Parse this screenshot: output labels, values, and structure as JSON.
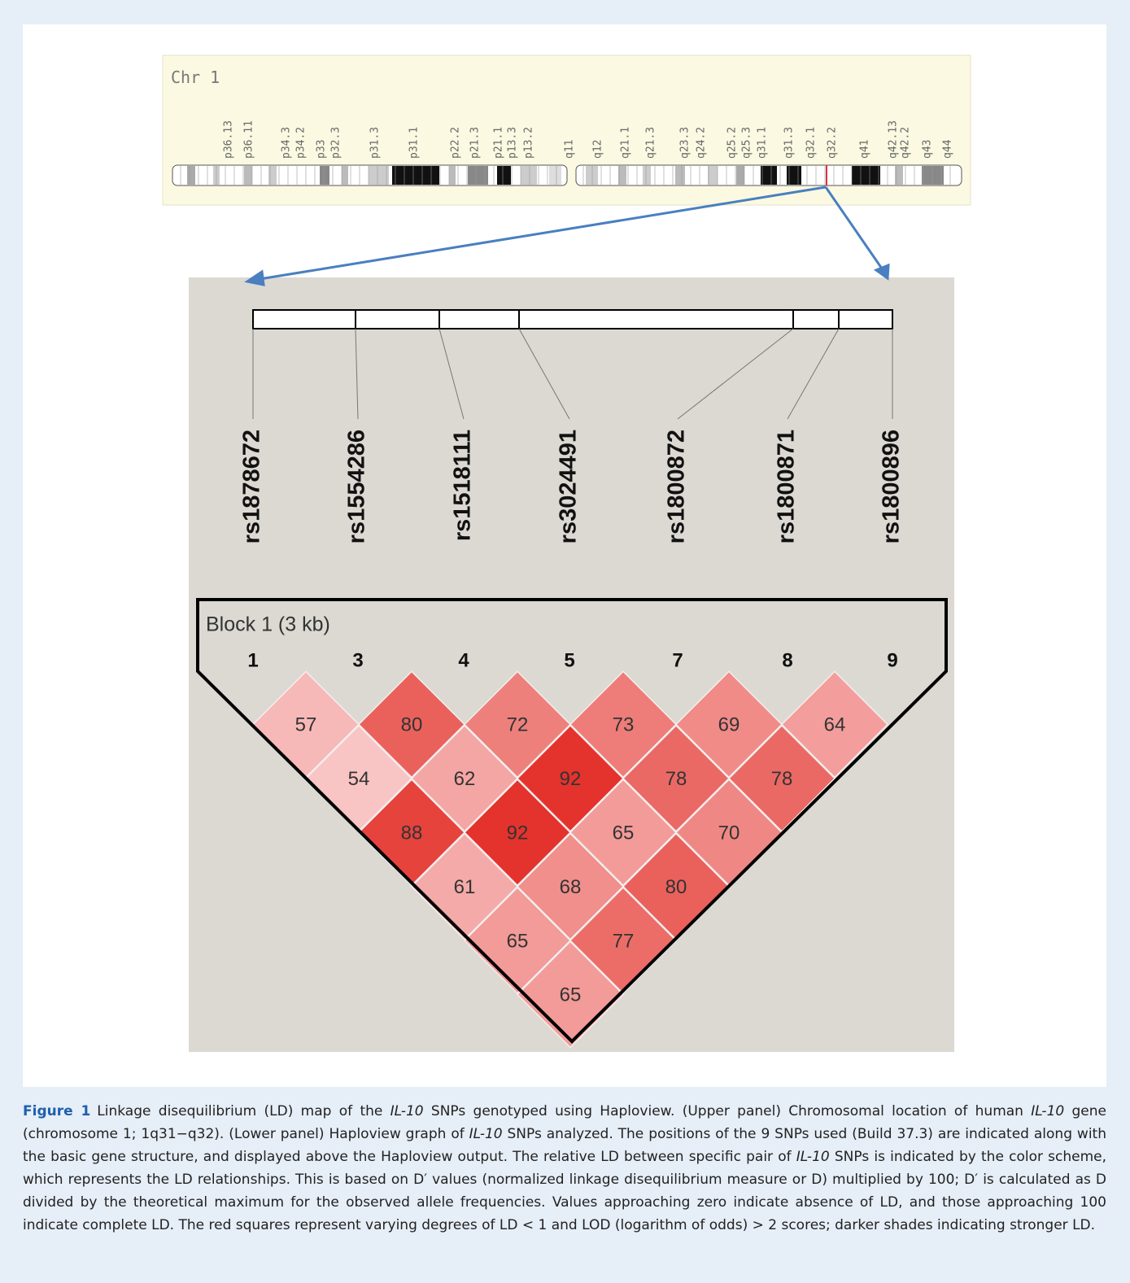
{
  "ideogram": {
    "chromosome": "Chr 1",
    "bands": [
      "p36.13",
      "p36.11",
      "p34.3",
      "p34.2",
      "p33",
      "p32.3",
      "p31.3",
      "p31.1",
      "p22.2",
      "p21.3",
      "p21.1",
      "p13.3",
      "p13.2",
      "q11",
      "q12",
      "q21.1",
      "q21.3",
      "q23.3",
      "q24.2",
      "q25.2",
      "q25.3",
      "q31.1",
      "q31.3",
      "q32.1",
      "q32.2",
      "q41",
      "q42.13",
      "q42.2",
      "q43",
      "q44"
    ]
  },
  "haploview": {
    "snps": [
      "rs1878672",
      "rs1554286",
      "rs1518111",
      "rs3024491",
      "rs1800872",
      "rs1800871",
      "rs1800896"
    ],
    "block_label": "Block 1 (3 kb)",
    "marker_numbers": [
      "1",
      "3",
      "4",
      "5",
      "7",
      "8",
      "9"
    ],
    "ld_rows": [
      [
        57,
        80,
        72,
        73,
        69,
        64
      ],
      [
        54,
        62,
        92,
        78,
        78
      ],
      [
        88,
        92,
        65,
        70
      ],
      [
        61,
        68,
        80
      ],
      [
        65,
        77
      ],
      [
        65
      ]
    ]
  },
  "caption": {
    "label": "Figure 1",
    "segments": [
      "Linkage disequilibrium (LD) map of the ",
      "IL-10",
      " SNPs genotyped using Haploview. (Upper panel) Chromosomal location of human ",
      "IL-10",
      " gene (chromosome 1; 1q31−q32). (Lower panel) Haploview graph of ",
      "IL-10",
      " SNPs analyzed. The positions of the 9 SNPs used (Build 37.3) are indicated along with the basic gene structure, and displayed above the Haploview output. The relative LD between specific pair of ",
      "IL-10",
      " SNPs is indicated by the color scheme, which represents the LD relationships. This is based on D′ values (normalized linkage disequilibrium measure or D) multiplied by 100; D′ is calculated as D divided by the theoretical maximum for the observed allele frequencies. Values approaching zero indicate absence of LD, and those approaching 100 indicate complete LD. The red squares represent varying degrees of LD < 1 and LOD (logarithm of odds) > 2 scores; darker shades indicating stronger LD."
    ],
    "italic_segments": [
      1,
      3,
      5,
      7
    ]
  }
}
